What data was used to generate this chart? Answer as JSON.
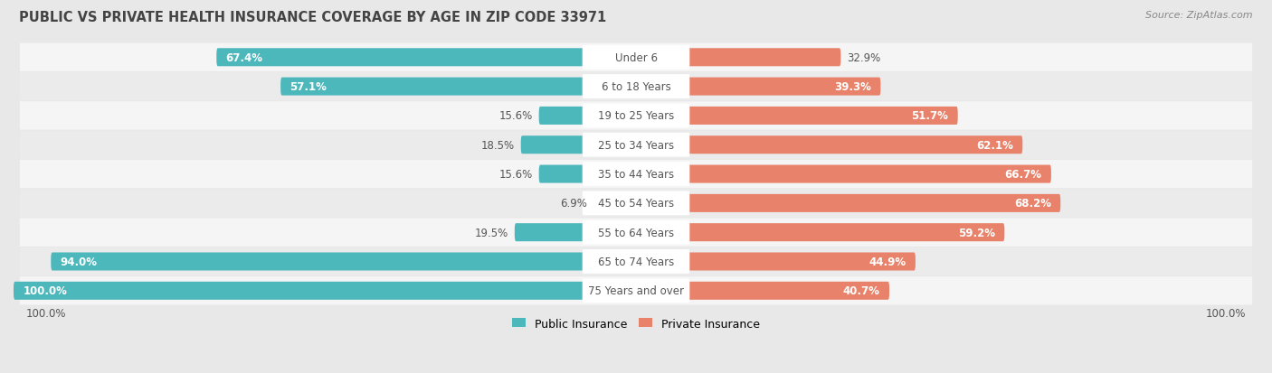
{
  "title": "PUBLIC VS PRIVATE HEALTH INSURANCE COVERAGE BY AGE IN ZIP CODE 33971",
  "source": "Source: ZipAtlas.com",
  "categories": [
    "Under 6",
    "6 to 18 Years",
    "19 to 25 Years",
    "25 to 34 Years",
    "35 to 44 Years",
    "45 to 54 Years",
    "55 to 64 Years",
    "65 to 74 Years",
    "75 Years and over"
  ],
  "public_values": [
    67.4,
    57.1,
    15.6,
    18.5,
    15.6,
    6.9,
    19.5,
    94.0,
    100.0
  ],
  "private_values": [
    32.9,
    39.3,
    51.7,
    62.1,
    66.7,
    68.2,
    59.2,
    44.9,
    40.7
  ],
  "public_color": "#4DB8BC",
  "private_color": "#E8826A",
  "public_label": "Public Insurance",
  "private_label": "Private Insurance",
  "background_color": "#e8e8e8",
  "row_colors": [
    "#f5f5f5",
    "#ebebeb"
  ],
  "title_color": "#444444",
  "source_color": "#888888",
  "label_dark_color": "#555555",
  "label_white_color": "#ffffff",
  "category_pill_color": "#ffffff",
  "category_text_color": "#555555",
  "title_fontsize": 10.5,
  "source_fontsize": 8,
  "bar_label_fontsize": 8.5,
  "category_fontsize": 8.5,
  "legend_fontsize": 9,
  "axis_label_fontsize": 8.5,
  "pub_inside_threshold": 25,
  "priv_inside_threshold": 35
}
